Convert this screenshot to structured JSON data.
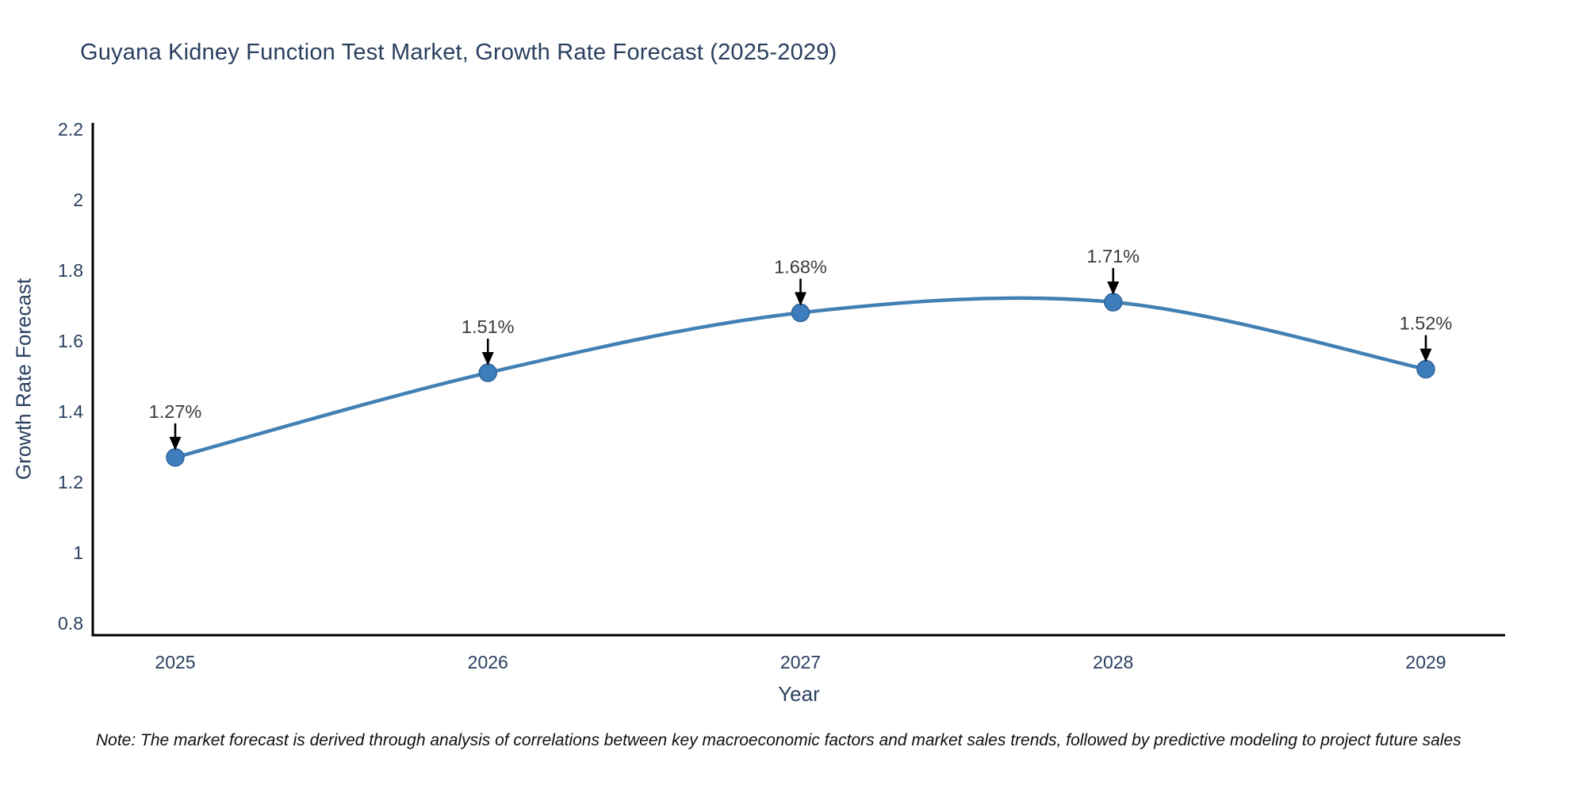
{
  "chart_data": {
    "type": "line",
    "title": "Guyana Kidney Function Test Market, Growth Rate Forecast (2025-2029)",
    "xlabel": "Year",
    "ylabel": "Growth Rate Forecast",
    "categories": [
      "2025",
      "2026",
      "2027",
      "2028",
      "2029"
    ],
    "x": [
      2025,
      2026,
      2027,
      2028,
      2029
    ],
    "values": [
      1.27,
      1.51,
      1.68,
      1.71,
      1.52
    ],
    "point_labels": [
      "1.27%",
      "1.51%",
      "1.68%",
      "1.71%",
      "1.52%"
    ],
    "ylim": [
      0.8,
      2.2
    ],
    "yticks": [
      0.8,
      1,
      1.2,
      1.4,
      1.6,
      1.8,
      2,
      2.2
    ],
    "ytick_labels": [
      "0.8",
      "1",
      "1.2",
      "1.4",
      "1.6",
      "1.8",
      "2",
      "2.2"
    ],
    "grid": false,
    "legend": "none",
    "line_shape": "spline",
    "colors": {
      "line": "#4280b4",
      "marker_fill": "#3d7dbd",
      "marker_edge": "#2e6399",
      "axis": "#000000",
      "tick_text": "#2a3f5f",
      "annotation_text": "#3a3a3a",
      "arrow": "#000000"
    }
  },
  "note": "Note: The market forecast is derived through analysis of correlations between key macroeconomic factors and market sales trends, followed by predictive modeling to project future sales"
}
